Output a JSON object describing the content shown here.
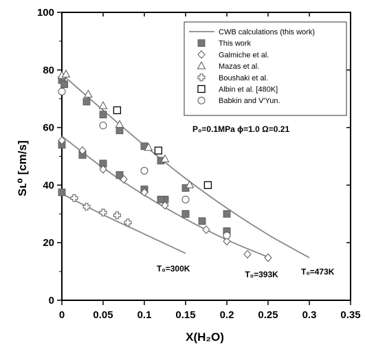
{
  "chart_data": {
    "type": "scatter",
    "xlabel": "X(H₂O)",
    "ylabel": "Sʟ⁰ [cm/s]",
    "xlim": [
      0,
      0.35
    ],
    "ylim": [
      0,
      100
    ],
    "xticks": [
      0,
      0.05,
      0.1,
      0.15,
      0.2,
      0.25,
      0.3,
      0.35
    ],
    "xtick_labels": [
      "0",
      "0.05",
      "0.1",
      "0.15",
      "0.2",
      "0.25",
      "0.3",
      "0.35"
    ],
    "yticks": [
      0,
      20,
      40,
      60,
      80,
      100
    ],
    "ytick_labels": [
      "0",
      "20",
      "40",
      "60",
      "80",
      "100"
    ],
    "grid": false,
    "legend_position": "top-right",
    "annotation": "P₀=0.1MPa   ϕ=1.0   Ω=0.21",
    "curves": [
      {
        "label": "T₀=300K",
        "points": [
          [
            0,
            37
          ],
          [
            0.05,
            29.7
          ],
          [
            0.1,
            23
          ],
          [
            0.15,
            16.3
          ]
        ]
      },
      {
        "label": "T₀=393K",
        "points": [
          [
            0,
            57
          ],
          [
            0.05,
            46
          ],
          [
            0.1,
            36.5
          ],
          [
            0.15,
            28.2
          ],
          [
            0.2,
            21
          ],
          [
            0.25,
            15
          ]
        ]
      },
      {
        "label": "T₀=473K",
        "points": [
          [
            0,
            78.5
          ],
          [
            0.05,
            66
          ],
          [
            0.1,
            53.8
          ],
          [
            0.15,
            42.3
          ],
          [
            0.2,
            32
          ],
          [
            0.25,
            22.8
          ],
          [
            0.3,
            14.8
          ]
        ]
      }
    ],
    "series": [
      {
        "name": "CWB calculations (this work)",
        "marker": "line",
        "color": "#888888"
      },
      {
        "name": "This work",
        "marker": "filled-square",
        "color": "#777777",
        "x": [
          0,
          0.025,
          0.05,
          0.07,
          0.1,
          0.125,
          0.15,
          0.2,
          0.0,
          0.025,
          0.05,
          0.07,
          0.1,
          0.12,
          0.15,
          0.2,
          0,
          0.003,
          0.03,
          0.05,
          0.07,
          0.1,
          0.12,
          0.15,
          0.17,
          0.2
        ],
        "y": [
          37.5,
          50.5,
          47.5,
          43.5,
          38.5,
          35,
          30,
          24,
          54,
          50.5,
          47.5,
          43.5,
          38.5,
          35,
          30,
          24,
          76.5,
          75,
          69,
          64.5,
          59,
          53.5,
          48.5,
          39,
          27.5,
          30
        ]
      },
      {
        "name": "Galmiche et al.",
        "marker": "diamond",
        "color": "#555555",
        "x": [
          0,
          0.025,
          0.05,
          0.075,
          0.1,
          0.125,
          0.175,
          0.2,
          0.225,
          0.25
        ],
        "y": [
          55.5,
          52,
          45.5,
          42,
          37.5,
          33,
          24.5,
          20.5,
          16,
          14.8
        ]
      },
      {
        "name": "Mazas et al.",
        "marker": "triangle",
        "color": "#555555",
        "x": [
          0,
          0.005,
          0.032,
          0.05,
          0.07,
          0.105,
          0.125,
          0.155
        ],
        "y": [
          78,
          78.5,
          71.5,
          67.5,
          61,
          53,
          49,
          40
        ]
      },
      {
        "name": "Boushaki et al.",
        "marker": "plus",
        "color": "#555555",
        "x": [
          0.015,
          0.03,
          0.05,
          0.067,
          0.08
        ],
        "y": [
          35.5,
          32.5,
          30.5,
          29.5,
          27
        ]
      },
      {
        "name": "Albin et al. [480K]",
        "marker": "open-square",
        "color": "#000000",
        "x": [
          0.067,
          0.117,
          0.177
        ],
        "y": [
          66,
          52,
          40
        ]
      },
      {
        "name": "Babkin and V'Yun.",
        "marker": "circle",
        "color": "#555555",
        "x": [
          0,
          0.05,
          0.1,
          0.15,
          0.2
        ],
        "y": [
          72.5,
          60.7,
          45,
          35,
          22.5
        ]
      }
    ]
  }
}
